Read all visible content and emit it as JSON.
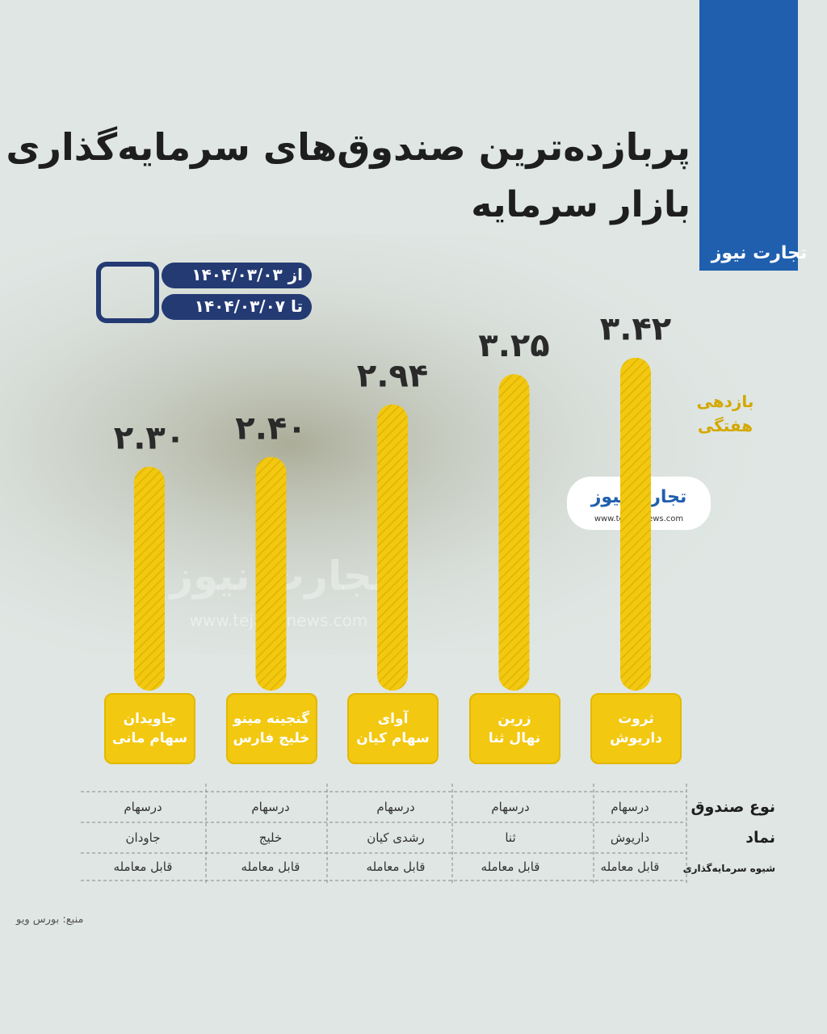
{
  "chart_data": {
    "type": "bar",
    "title": "پربازده‌ترین صندوق‌های سرمایه‌گذاری",
    "subtitle": "بازار سرمایه",
    "y_label": "بازدهی\nهفتگی",
    "categories": [
      "ثروت\nداریوش",
      "زرین\nنهال ثنا",
      "آوای\nسهام کیان",
      "گنجینه مینو\nخلیج فارس",
      "جاویدان\nسهام مانی"
    ],
    "values": [
      3.42,
      3.25,
      2.94,
      2.4,
      2.3
    ],
    "value_labels": [
      "۳.۴۲",
      "۳.۲۵",
      "۲.۹۴",
      "۲.۴۰",
      "۲.۳۰"
    ],
    "color": "#f2c811",
    "ylim": [
      0,
      3.6
    ]
  },
  "dates": {
    "from": "از ۱۴۰۴/۰۳/۰۳",
    "to": "تا ۱۴۰۴/۰۳/۰۷"
  },
  "table": {
    "rows": [
      {
        "label": "نوع صندوق",
        "cells": [
          "درسهام",
          "درسهام",
          "درسهام",
          "درسهام",
          "درسهام"
        ]
      },
      {
        "label": "نماد",
        "cells": [
          "داریوش",
          "ثنا",
          "رشدی کیان",
          "خلیج",
          "جاودان"
        ]
      },
      {
        "label": "شیوه سرمایه‌گذاری",
        "cells": [
          "قابل معامله",
          "قابل معامله",
          "قابل معامله",
          "قابل معامله",
          "قابل معامله"
        ]
      }
    ]
  },
  "brand": {
    "name": "تجارت نیوز",
    "url": "www.tejaratnews.com"
  },
  "source": "منبع: بورس ویو"
}
